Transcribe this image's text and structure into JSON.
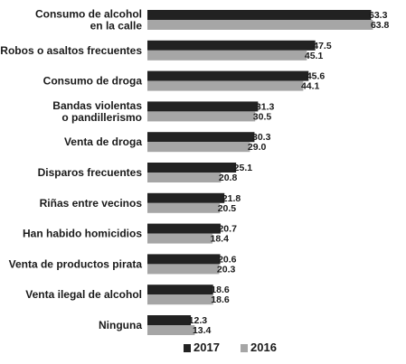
{
  "chart_data": {
    "type": "bar",
    "orientation": "horizontal",
    "categories": [
      "Consumo de alcohol en la calle",
      "Robos o asaltos frecuentes",
      "Consumo de droga",
      "Bandas violentas o pandillerismo",
      "Venta de droga",
      "Disparos frecuentes",
      "Riñas entre vecinos",
      "Han habido homicidios",
      "Venta de productos pirata",
      "Venta ilegal de alcohol",
      "Ninguna"
    ],
    "category_lines": [
      [
        "Consumo de alcohol",
        "en la calle"
      ],
      [
        "Robos o asaltos frecuentes"
      ],
      [
        "Consumo de droga"
      ],
      [
        "Bandas violentas",
        "o pandillerismo"
      ],
      [
        "Venta de droga"
      ],
      [
        "Disparos frecuentes"
      ],
      [
        "Riñas entre vecinos"
      ],
      [
        "Han habido homicidios"
      ],
      [
        "Venta de productos pirata"
      ],
      [
        "Venta ilegal de alcohol"
      ],
      [
        "Ninguna"
      ]
    ],
    "series": [
      {
        "name": "2017",
        "color": "#222222",
        "values": [
          63.3,
          47.5,
          45.6,
          31.3,
          30.3,
          25.1,
          21.8,
          20.7,
          20.6,
          18.6,
          12.3
        ],
        "labels": [
          "63.3",
          "47.5",
          "45.6",
          "31.3",
          "30.3",
          "25.1",
          "21.8",
          "20.7",
          "20.6",
          "18.6",
          "12.3"
        ]
      },
      {
        "name": "2016",
        "color": "#a6a6a6",
        "values": [
          63.8,
          45.1,
          44.1,
          30.5,
          29.0,
          20.8,
          20.5,
          18.4,
          20.3,
          18.6,
          13.4
        ],
        "labels": [
          "63.8",
          "45.1",
          "44.1",
          "30.5",
          "29.0",
          "20.8",
          "20.5",
          "18.4",
          "20.3",
          "18.6",
          "13.4"
        ]
      }
    ],
    "xlim": [
      0,
      66
    ],
    "grid": false,
    "legend": "bottom",
    "legend_labels": [
      "2017",
      "2016"
    ]
  }
}
